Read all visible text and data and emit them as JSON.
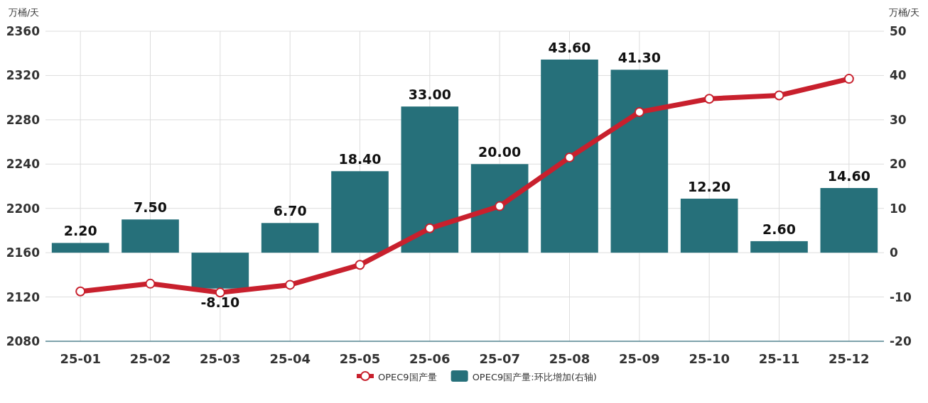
{
  "chart_data": {
    "type": "bar",
    "ylabel": "万桶/天",
    "y2label": "万桶/天",
    "categories": [
      "25-01",
      "25-02",
      "25-03",
      "25-04",
      "25-05",
      "25-06",
      "25-07",
      "25-08",
      "25-09",
      "25-10",
      "25-11",
      "25-12"
    ],
    "series": [
      {
        "name": "OPEC9国产量",
        "type": "line",
        "color": "#c8202d",
        "marker": "circle",
        "values": [
          2125,
          2132,
          2124,
          2131,
          2149,
          2182,
          2202,
          2246,
          2287,
          2299,
          2302,
          2317
        ]
      },
      {
        "name": "OPEC9国产量:环比增加(右轴)",
        "axis": "y2",
        "color": "#26707a",
        "values": [
          2.2,
          7.5,
          -8.1,
          6.7,
          18.4,
          33,
          20,
          43.6,
          41.3,
          12.2,
          2.6,
          14.6
        ],
        "value_labels": [
          "2.20",
          "7.50",
          "-8.10",
          "6.70",
          "18.40",
          "33.00",
          "20.00",
          "43.60",
          "41.30",
          "12.20",
          "2.60",
          "14.60"
        ]
      }
    ],
    "ylim": [
      2080,
      2360
    ],
    "yticks": [
      2080,
      2120,
      2160,
      2200,
      2240,
      2280,
      2320,
      2360
    ],
    "y2lim": [
      -20,
      50
    ],
    "y2ticks": [
      -20,
      -10,
      0,
      10,
      20,
      30,
      40,
      50
    ],
    "grid": true,
    "legend": "bottom"
  }
}
